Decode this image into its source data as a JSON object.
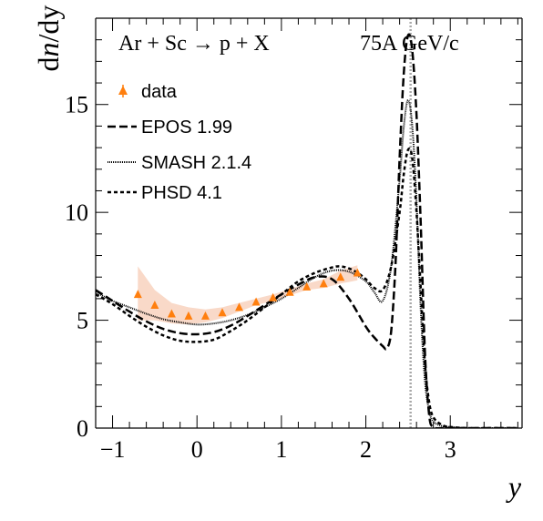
{
  "chart_data": {
    "type": "line",
    "reaction": "Ar + Sc → p + X",
    "energy": "75A GeV/c",
    "xlabel": "y",
    "ylabel": "dn/dy",
    "xlim": [
      -1.2,
      3.85
    ],
    "ylim": [
      0,
      19
    ],
    "xticks": [
      -1,
      0,
      1,
      2,
      3
    ],
    "yticks": [
      0,
      5,
      10,
      15
    ],
    "colors": {
      "data_marker": "#ff7f0e",
      "data_band": "#f9d9c8",
      "lines": "#000000",
      "beam_line": "#aaaaaa"
    },
    "vertical_line_x": 2.53,
    "legend": [
      "data",
      "EPOS 1.99",
      "SMASH 2.1.4",
      "PHSD 4.1"
    ],
    "data": {
      "x": [
        -0.7,
        -0.5,
        -0.3,
        -0.1,
        0.1,
        0.3,
        0.5,
        0.7,
        0.9,
        1.1,
        1.3,
        1.5,
        1.7,
        1.9
      ],
      "y": [
        6.2,
        5.7,
        5.3,
        5.2,
        5.2,
        5.35,
        5.6,
        5.85,
        6.05,
        6.3,
        6.55,
        6.7,
        7.0,
        7.2
      ],
      "band_upper": [
        7.5,
        6.4,
        5.8,
        5.6,
        5.5,
        5.6,
        5.8,
        6.0,
        6.2,
        6.45,
        6.7,
        6.9,
        7.3,
        7.55
      ],
      "band_lower": [
        5.0,
        5.0,
        4.85,
        4.8,
        4.9,
        5.1,
        5.4,
        5.7,
        5.9,
        6.15,
        6.4,
        6.5,
        6.7,
        6.85
      ]
    },
    "series": [
      {
        "name": "EPOS 1.99",
        "x": [
          -1.2,
          -1.0,
          -0.8,
          -0.6,
          -0.4,
          -0.2,
          0.0,
          0.2,
          0.4,
          0.6,
          0.8,
          1.0,
          1.2,
          1.4,
          1.6,
          1.8,
          2.0,
          2.1,
          2.2,
          2.25,
          2.3,
          2.35,
          2.4,
          2.45,
          2.5,
          2.55,
          2.6,
          2.65,
          2.7,
          2.75,
          2.8,
          2.9,
          3.0,
          3.5,
          3.8
        ],
        "y": [
          6.4,
          5.9,
          5.4,
          4.95,
          4.6,
          4.4,
          4.35,
          4.45,
          4.75,
          5.2,
          5.7,
          6.2,
          6.65,
          7.0,
          6.9,
          6.0,
          4.7,
          4.2,
          3.8,
          3.7,
          4.5,
          7.5,
          12.5,
          16.5,
          18.2,
          17.5,
          14.5,
          9.5,
          3.5,
          0.6,
          0.05,
          0.0,
          0.0,
          0.0,
          0.0
        ]
      },
      {
        "name": "SMASH 2.1.4",
        "x": [
          -1.2,
          -1.0,
          -0.8,
          -0.6,
          -0.4,
          -0.2,
          0.0,
          0.2,
          0.4,
          0.6,
          0.8,
          1.0,
          1.2,
          1.4,
          1.6,
          1.8,
          2.0,
          2.1,
          2.2,
          2.3,
          2.4,
          2.45,
          2.5,
          2.55,
          2.6,
          2.65,
          2.7,
          2.75,
          2.8,
          2.9,
          3.0,
          3.2,
          3.5,
          3.8
        ],
        "y": [
          6.3,
          5.9,
          5.6,
          5.3,
          5.05,
          4.9,
          4.8,
          4.85,
          5.0,
          5.25,
          5.6,
          6.0,
          6.5,
          7.0,
          7.3,
          7.25,
          6.8,
          6.3,
          5.9,
          7.5,
          11.5,
          14.0,
          15.2,
          14.0,
          10.5,
          5.5,
          2.2,
          0.8,
          0.3,
          0.1,
          0.05,
          0.0,
          0.0,
          0.0
        ]
      },
      {
        "name": "PHSD 4.1",
        "x": [
          -1.2,
          -1.0,
          -0.8,
          -0.6,
          -0.4,
          -0.2,
          0.0,
          0.2,
          0.4,
          0.6,
          0.8,
          1.0,
          1.2,
          1.4,
          1.6,
          1.7,
          1.8,
          1.9,
          2.0,
          2.1,
          2.2,
          2.3,
          2.4,
          2.45,
          2.5,
          2.55,
          2.6,
          2.65,
          2.7,
          2.75,
          2.8,
          2.9,
          3.0,
          3.2,
          3.5,
          3.8
        ],
        "y": [
          6.2,
          5.75,
          5.2,
          4.7,
          4.3,
          4.05,
          4.0,
          4.1,
          4.5,
          5.0,
          5.6,
          6.2,
          6.8,
          7.2,
          7.45,
          7.5,
          7.4,
          7.2,
          6.9,
          6.5,
          6.4,
          7.5,
          10.0,
          11.8,
          12.9,
          12.5,
          10.0,
          6.5,
          3.0,
          1.2,
          0.5,
          0.15,
          0.05,
          0.0,
          0.0,
          0.0
        ]
      }
    ]
  }
}
